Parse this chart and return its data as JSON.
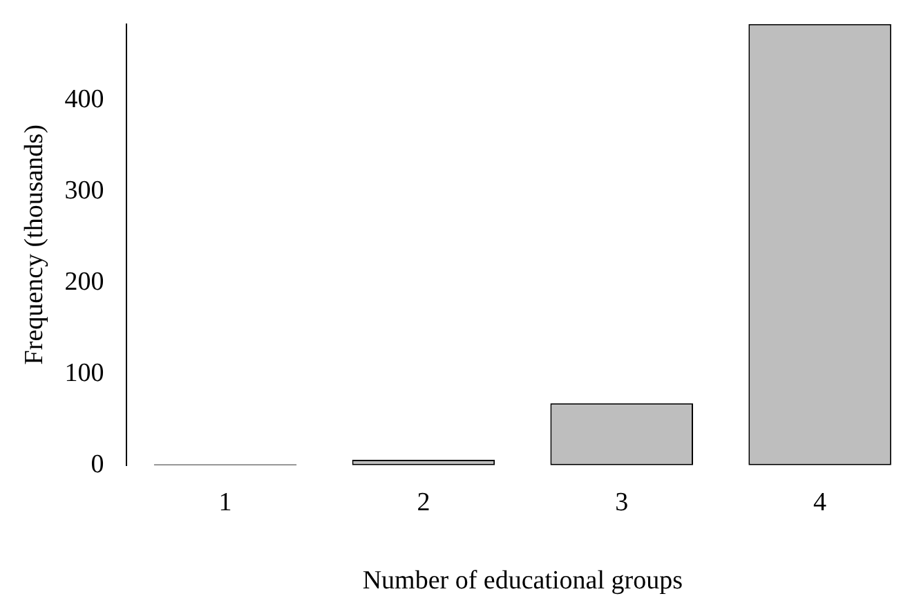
{
  "chart_data": {
    "type": "bar",
    "xlabel": "Number of educational groups",
    "ylabel": "Frequency (thousands)",
    "categories": [
      "1",
      "2",
      "3",
      "4"
    ],
    "values": [
      1,
      6,
      68,
      484
    ],
    "colors": [
      "#000000",
      "#bebebe",
      "#bebebe",
      "#bebebe"
    ],
    "ylim": [
      0,
      484
    ],
    "yticks": [
      0,
      100,
      200,
      300,
      400
    ],
    "grid": false,
    "legend": false
  }
}
